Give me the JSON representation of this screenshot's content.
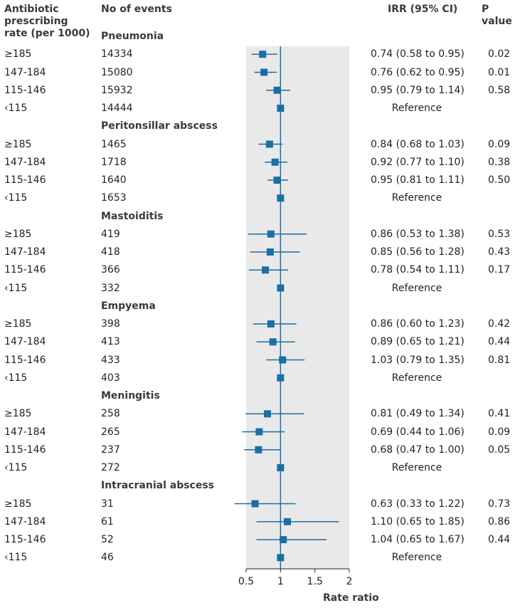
{
  "header": {
    "rate_label": "Antibiotic\nprescribing\nrate (per 1000)",
    "events_label": "No of events",
    "irr_label": "IRR (95% CI)",
    "p_label": "P value"
  },
  "chart_data": {
    "type": "forest",
    "xlabel": "Rate ratio",
    "x_ticks": [
      0.5,
      1,
      1.5,
      2
    ],
    "x_tick_labels": [
      "0.5",
      "1",
      "1.5",
      "2"
    ],
    "xlim": [
      0.5,
      2
    ],
    "reference_line": 1,
    "groups": [
      {
        "title": "Pneumonia",
        "rows": [
          {
            "rate": "≥185",
            "events": "14334",
            "irr": 0.74,
            "lo": 0.58,
            "hi": 0.95,
            "irr_text": "0.74 (0.58 to 0.95)",
            "p": "0.02"
          },
          {
            "rate": "147-184",
            "events": "15080",
            "irr": 0.76,
            "lo": 0.62,
            "hi": 0.95,
            "irr_text": "0.76 (0.62 to 0.95)",
            "p": "0.01"
          },
          {
            "rate": "115-146",
            "events": "15932",
            "irr": 0.95,
            "lo": 0.79,
            "hi": 1.14,
            "irr_text": "0.95 (0.79 to 1.14)",
            "p": "0.58"
          },
          {
            "rate": "‹115",
            "events": "14444",
            "irr": 1.0,
            "lo": null,
            "hi": null,
            "irr_text": "Reference",
            "p": ""
          }
        ]
      },
      {
        "title": "Peritonsillar abscess",
        "rows": [
          {
            "rate": "≥185",
            "events": "1465",
            "irr": 0.84,
            "lo": 0.68,
            "hi": 1.03,
            "irr_text": "0.84 (0.68 to 1.03)",
            "p": "0.09"
          },
          {
            "rate": "147-184",
            "events": "1718",
            "irr": 0.92,
            "lo": 0.77,
            "hi": 1.1,
            "irr_text": "0.92 (0.77 to 1.10)",
            "p": "0.38"
          },
          {
            "rate": "115-146",
            "events": "1640",
            "irr": 0.95,
            "lo": 0.81,
            "hi": 1.11,
            "irr_text": "0.95 (0.81 to 1.11)",
            "p": "0.50"
          },
          {
            "rate": "‹115",
            "events": "1653",
            "irr": 1.0,
            "lo": null,
            "hi": null,
            "irr_text": "Reference",
            "p": ""
          }
        ]
      },
      {
        "title": "Mastoiditis",
        "rows": [
          {
            "rate": "≥185",
            "events": "419",
            "irr": 0.86,
            "lo": 0.53,
            "hi": 1.38,
            "irr_text": "0.86 (0.53 to 1.38)",
            "p": "0.53"
          },
          {
            "rate": "147-184",
            "events": "418",
            "irr": 0.85,
            "lo": 0.56,
            "hi": 1.28,
            "irr_text": "0.85 (0.56 to 1.28)",
            "p": "0.43"
          },
          {
            "rate": "115-146",
            "events": "366",
            "irr": 0.78,
            "lo": 0.54,
            "hi": 1.11,
            "irr_text": "0.78 (0.54 to 1.11)",
            "p": "0.17"
          },
          {
            "rate": "‹115",
            "events": "332",
            "irr": 1.0,
            "lo": null,
            "hi": null,
            "irr_text": "Reference",
            "p": ""
          }
        ]
      },
      {
        "title": "Empyema",
        "rows": [
          {
            "rate": "≥185",
            "events": "398",
            "irr": 0.86,
            "lo": 0.6,
            "hi": 1.23,
            "irr_text": "0.86 (0.60 to 1.23)",
            "p": "0.42"
          },
          {
            "rate": "147-184",
            "events": "413",
            "irr": 0.89,
            "lo": 0.65,
            "hi": 1.21,
            "irr_text": "0.89 (0.65 to 1.21)",
            "p": "0.44"
          },
          {
            "rate": "115-146",
            "events": "433",
            "irr": 1.03,
            "lo": 0.79,
            "hi": 1.35,
            "irr_text": "1.03 (0.79 to 1.35)",
            "p": "0.81"
          },
          {
            "rate": "‹115",
            "events": "403",
            "irr": 1.0,
            "lo": null,
            "hi": null,
            "irr_text": "Reference",
            "p": ""
          }
        ]
      },
      {
        "title": "Meningitis",
        "rows": [
          {
            "rate": "≥185",
            "events": "258",
            "irr": 0.81,
            "lo": 0.49,
            "hi": 1.34,
            "irr_text": "0.81 (0.49 to 1.34)",
            "p": "0.41"
          },
          {
            "rate": "147-184",
            "events": "265",
            "irr": 0.69,
            "lo": 0.44,
            "hi": 1.06,
            "irr_text": "0.69 (0.44 to 1.06)",
            "p": "0.09"
          },
          {
            "rate": "115-146",
            "events": "237",
            "irr": 0.68,
            "lo": 0.47,
            "hi": 1.0,
            "irr_text": "0.68 (0.47 to 1.00)",
            "p": "0.05"
          },
          {
            "rate": "‹115",
            "events": "272",
            "irr": 1.0,
            "lo": null,
            "hi": null,
            "irr_text": "Reference",
            "p": ""
          }
        ]
      },
      {
        "title": "Intracranial abscess",
        "rows": [
          {
            "rate": "≥185",
            "events": "31",
            "irr": 0.63,
            "lo": 0.33,
            "hi": 1.22,
            "irr_text": "0.63 (0.33 to 1.22)",
            "p": "0.73"
          },
          {
            "rate": "147-184",
            "events": "61",
            "irr": 1.1,
            "lo": 0.65,
            "hi": 1.85,
            "irr_text": "1.10 (0.65 to 1.85)",
            "p": "0.86"
          },
          {
            "rate": "115-146",
            "events": "52",
            "irr": 1.04,
            "lo": 0.65,
            "hi": 1.67,
            "irr_text": "1.04 (0.65 to 1.67)",
            "p": "0.44"
          },
          {
            "rate": "‹115",
            "events": "46",
            "irr": 1.0,
            "lo": null,
            "hi": null,
            "irr_text": "Reference",
            "p": ""
          }
        ]
      }
    ]
  },
  "colors": {
    "marker": "#1a6fa3",
    "shade": "#e9e9ea",
    "reference_line": "#1a6fa3",
    "axis": "#231f20"
  }
}
